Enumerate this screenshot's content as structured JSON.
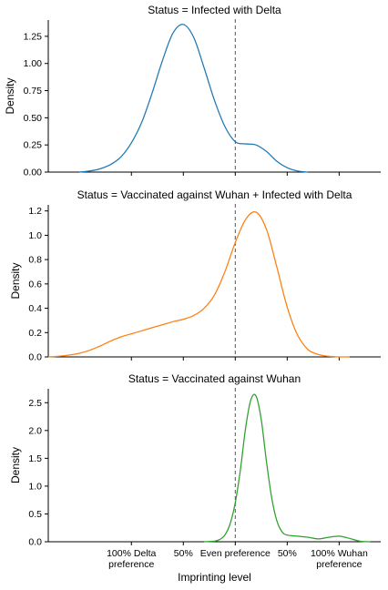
{
  "xlabel": "Imprinting level",
  "x_ticks": [
    {
      "value": -1.0,
      "label": [
        "100% Delta",
        "preference"
      ]
    },
    {
      "value": -0.5,
      "label": [
        "50%"
      ]
    },
    {
      "value": 0.0,
      "label": [
        "Even preference"
      ]
    },
    {
      "value": 0.5,
      "label": [
        "50%"
      ]
    },
    {
      "value": 1.0,
      "label": [
        "100% Wuhan",
        "preference"
      ]
    }
  ],
  "chart_data": [
    {
      "type": "line",
      "title": "Status = Infected with Delta",
      "ylabel": "Density",
      "color": "#1f77b4",
      "xlim": [
        -1.8,
        1.4
      ],
      "ylim": [
        0,
        1.4
      ],
      "yticks": [
        "0.00",
        "0.25",
        "0.50",
        "0.75",
        "1.00",
        "1.25"
      ],
      "ytick_values": [
        0,
        0.25,
        0.5,
        0.75,
        1.0,
        1.25
      ],
      "reference_x": 0,
      "x": [
        -1.5,
        -1.4,
        -1.3,
        -1.2,
        -1.1,
        -1.0,
        -0.9,
        -0.8,
        -0.7,
        -0.6,
        -0.5,
        -0.4,
        -0.3,
        -0.2,
        -0.1,
        0.0,
        0.1,
        0.2,
        0.3,
        0.4,
        0.5,
        0.6,
        0.7
      ],
      "y": [
        0.0,
        0.01,
        0.03,
        0.07,
        0.14,
        0.27,
        0.46,
        0.73,
        1.03,
        1.28,
        1.36,
        1.24,
        0.96,
        0.66,
        0.42,
        0.28,
        0.26,
        0.25,
        0.19,
        0.1,
        0.04,
        0.01,
        0.0
      ]
    },
    {
      "type": "line",
      "title": "Status = Vaccinated against Wuhan + Infected with Delta",
      "ylabel": "Density",
      "color": "#ff7f0e",
      "xlim": [
        -1.8,
        1.4
      ],
      "ylim": [
        0,
        1.25
      ],
      "yticks": [
        "0.0",
        "0.2",
        "0.4",
        "0.6",
        "0.8",
        "1.0",
        "1.2"
      ],
      "ytick_values": [
        0,
        0.2,
        0.4,
        0.6,
        0.8,
        1.0,
        1.2
      ],
      "reference_x": 0,
      "x": [
        -1.8,
        -1.7,
        -1.6,
        -1.5,
        -1.4,
        -1.3,
        -1.2,
        -1.1,
        -1.0,
        -0.9,
        -0.8,
        -0.7,
        -0.6,
        -0.5,
        -0.4,
        -0.3,
        -0.2,
        -0.1,
        0.0,
        0.1,
        0.2,
        0.3,
        0.4,
        0.5,
        0.6,
        0.7,
        0.8,
        0.9,
        1.0,
        1.1
      ],
      "y": [
        0.0,
        0.005,
        0.015,
        0.03,
        0.055,
        0.09,
        0.13,
        0.165,
        0.19,
        0.215,
        0.24,
        0.265,
        0.29,
        0.31,
        0.34,
        0.4,
        0.51,
        0.7,
        0.94,
        1.13,
        1.19,
        1.05,
        0.74,
        0.41,
        0.18,
        0.06,
        0.02,
        0.005,
        0.0,
        0.0
      ]
    },
    {
      "type": "line",
      "title": "Status = Vaccinated against Wuhan",
      "ylabel": "Density",
      "color": "#2ca02c",
      "xlim": [
        -1.8,
        1.4
      ],
      "ylim": [
        0,
        2.75
      ],
      "yticks": [
        "0.0",
        "0.5",
        "1.0",
        "1.5",
        "2.0",
        "2.5"
      ],
      "ytick_values": [
        0,
        0.5,
        1.0,
        1.5,
        2.0,
        2.5
      ],
      "reference_x": 0,
      "x": [
        -0.3,
        -0.2,
        -0.15,
        -0.1,
        -0.05,
        0.0,
        0.05,
        0.1,
        0.15,
        0.2,
        0.25,
        0.3,
        0.35,
        0.4,
        0.45,
        0.5,
        0.6,
        0.7,
        0.8,
        0.9,
        1.0,
        1.1,
        1.2,
        1.3
      ],
      "y": [
        0.0,
        0.01,
        0.04,
        0.12,
        0.32,
        0.7,
        1.3,
        2.05,
        2.55,
        2.62,
        2.2,
        1.45,
        0.8,
        0.38,
        0.18,
        0.12,
        0.1,
        0.08,
        0.05,
        0.08,
        0.1,
        0.06,
        0.01,
        0.0
      ]
    }
  ]
}
